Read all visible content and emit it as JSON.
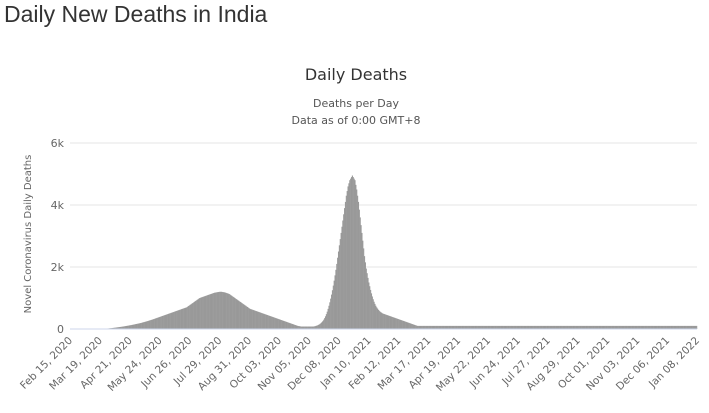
{
  "page_title": "Daily New Deaths in India",
  "chart_data": {
    "type": "bar",
    "title": "Daily Deaths",
    "subtitle_lines": [
      "Deaths per Day",
      "Data as of 0:00 GMT+8"
    ],
    "ylabel": "Novel Coronavirus Daily Deaths",
    "xlabel": "",
    "ylim": [
      0,
      6000
    ],
    "y_ticks": [
      0,
      2000,
      4000,
      6000
    ],
    "y_tick_labels": [
      "0",
      "2k",
      "4k",
      "6k"
    ],
    "x_tick_labels": [
      "Feb 15, 2020",
      "Mar 19, 2020",
      "Apr 21, 2020",
      "May 24, 2020",
      "Jun 26, 2020",
      "Jul 29, 2020",
      "Aug 31, 2020",
      "Oct 03, 2020",
      "Nov 05, 2020",
      "Dec 08, 2020",
      "Jan 10, 2021",
      "Feb 12, 2021",
      "Mar 17, 2021",
      "Apr 19, 2021",
      "May 22, 2021",
      "Jun 24, 2021",
      "Jul 27, 2021",
      "Aug 29, 2021",
      "Oct 01, 2021",
      "Nov 03, 2021",
      "Dec 06, 2021",
      "Jan 08, 2022"
    ],
    "grid": true,
    "legend": "none",
    "bar_color": "#999999",
    "series": [
      {
        "start_date": "Feb 15, 2020",
        "interval": "1 day",
        "values": [
          0,
          0,
          0,
          0,
          0,
          0,
          0,
          0,
          0,
          0,
          0,
          0,
          0,
          0,
          0,
          0,
          0,
          0,
          0,
          0,
          0,
          1,
          0,
          1,
          1,
          1,
          0,
          2,
          1,
          2,
          1,
          2,
          3,
          4,
          4,
          5,
          6,
          6,
          7,
          9,
          11,
          13,
          15,
          17,
          19,
          22,
          25,
          28,
          31,
          35,
          38,
          42,
          45,
          49,
          53,
          57,
          61,
          65,
          69,
          73,
          77,
          81,
          86,
          91,
          96,
          101,
          106,
          111,
          116,
          121,
          126,
          132,
          138,
          144,
          150,
          156,
          162,
          168,
          174,
          180,
          186,
          193,
          200,
          208,
          216,
          224,
          232,
          240,
          248,
          256,
          265,
          274,
          283,
          292,
          301,
          310,
          320,
          330,
          340,
          350,
          360,
          370,
          380,
          390,
          400,
          410,
          420,
          430,
          440,
          450,
          460,
          470,
          480,
          490,
          500,
          510,
          520,
          530,
          540,
          550,
          560,
          570,
          580,
          590,
          600,
          610,
          620,
          630,
          640,
          650,
          660,
          670,
          680,
          690,
          700,
          720,
          740,
          760,
          780,
          800,
          820,
          840,
          860,
          880,
          900,
          920,
          940,
          960,
          980,
          1000,
          1010,
          1020,
          1030,
          1040,
          1050,
          1060,
          1070,
          1080,
          1090,
          1100,
          1110,
          1120,
          1130,
          1140,
          1150,
          1160,
          1170,
          1175,
          1180,
          1185,
          1190,
          1195,
          1200,
          1200,
          1200,
          1195,
          1190,
          1185,
          1180,
          1170,
          1160,
          1150,
          1140,
          1130,
          1110,
          1090,
          1070,
          1050,
          1030,
          1010,
          990,
          970,
          950,
          930,
          910,
          890,
          870,
          850,
          830,
          810,
          790,
          770,
          750,
          730,
          710,
          690,
          670,
          650,
          640,
          630,
          620,
          610,
          600,
          590,
          580,
          570,
          560,
          550,
          540,
          530,
          520,
          510,
          500,
          490,
          480,
          470,
          460,
          450,
          440,
          430,
          420,
          410,
          400,
          390,
          380,
          370,
          360,
          350,
          340,
          330,
          320,
          310,
          300,
          290,
          280,
          270,
          260,
          250,
          240,
          230,
          220,
          210,
          200,
          190,
          180,
          170,
          160,
          150,
          140,
          130,
          120,
          110,
          100,
          95,
          90,
          85,
          80,
          80,
          80,
          80,
          80,
          80,
          80,
          80,
          80,
          80,
          80,
          80,
          80,
          80,
          80,
          85,
          90,
          100,
          110,
          120,
          135,
          150,
          170,
          195,
          225,
          260,
          300,
          350,
          410,
          480,
          560,
          650,
          750,
          860,
          980,
          1110,
          1250,
          1400,
          1560,
          1730,
          1910,
          2100,
          2300,
          2500,
          2700,
          2900,
          3100,
          3300,
          3500,
          3700,
          3900,
          4100,
          4300,
          4450,
          4600,
          4700,
          4800,
          4850,
          4900,
          4950,
          4900,
          4850,
          4800,
          4650,
          4500,
          4300,
          4100,
          3850,
          3600,
          3350,
          3100,
          2850,
          2600,
          2350,
          2150,
          1950,
          1800,
          1650,
          1500,
          1380,
          1260,
          1150,
          1050,
          960,
          880,
          810,
          750,
          700,
          660,
          620,
          590,
          560,
          540,
          520,
          500,
          490,
          480,
          470,
          460,
          450,
          440,
          430,
          420,
          410,
          400,
          390,
          380,
          370,
          360,
          350,
          340,
          330,
          320,
          310,
          300,
          290,
          280,
          270,
          260,
          250,
          240,
          230,
          220,
          210,
          200,
          190,
          180,
          170,
          160,
          150,
          140,
          130,
          120,
          110,
          100,
          100,
          100,
          100,
          100,
          100,
          100,
          100,
          100,
          100,
          100,
          100,
          100,
          100,
          100,
          100,
          100,
          100,
          100,
          100,
          100,
          100,
          100,
          100,
          100,
          100,
          100,
          100,
          100,
          100,
          100,
          100,
          100,
          100,
          100,
          100,
          100,
          100,
          100,
          100,
          100,
          100,
          100,
          100,
          100,
          100,
          100,
          100,
          100,
          100,
          100,
          100,
          100,
          100,
          100,
          100,
          100,
          100,
          100,
          100,
          100,
          100,
          100,
          100,
          100,
          100,
          100,
          100,
          100,
          100,
          100,
          100,
          100,
          100,
          100,
          100,
          100,
          100,
          100,
          100,
          100,
          100,
          100,
          100,
          100,
          100,
          100,
          100,
          100,
          100,
          100,
          100,
          100,
          100,
          100,
          100,
          100,
          100,
          100,
          100,
          100,
          100,
          100,
          100,
          100,
          100,
          100,
          100,
          100,
          100,
          100,
          100,
          100,
          100,
          100,
          100,
          100,
          100,
          100,
          100,
          100,
          100,
          100,
          100,
          100,
          100,
          100,
          100,
          100,
          100,
          100,
          100,
          100,
          100,
          100,
          100,
          100,
          100,
          100,
          100,
          100,
          100,
          100,
          100,
          100,
          100,
          100,
          100,
          100,
          100,
          100,
          100,
          100,
          100,
          100,
          100,
          100,
          100,
          100,
          100,
          100,
          100,
          100,
          100,
          100,
          100,
          100,
          100,
          100,
          100,
          100,
          100,
          100,
          100,
          100,
          100,
          100,
          100,
          100,
          100,
          100,
          100,
          100,
          100,
          100,
          100,
          100,
          100,
          100,
          100,
          100,
          100,
          100,
          100,
          100,
          100,
          100,
          100,
          100,
          100,
          100,
          100,
          100,
          100,
          100,
          100,
          100,
          100,
          100,
          100,
          100,
          100,
          100,
          100,
          100,
          100,
          100,
          100,
          100,
          100,
          100,
          100,
          100,
          100,
          100,
          100,
          100,
          100,
          100,
          100,
          100,
          100,
          100,
          100,
          100,
          100,
          100,
          100,
          100,
          100,
          100,
          100,
          100,
          100,
          100,
          100,
          100,
          100,
          100,
          100,
          100,
          100,
          100,
          100,
          100,
          100,
          100,
          100,
          100,
          100,
          100,
          100,
          100,
          100,
          100,
          100,
          100,
          100,
          100,
          100,
          100,
          100,
          100,
          100,
          100,
          100,
          100,
          100,
          100,
          100,
          100,
          100,
          100,
          100,
          100,
          100,
          100,
          100,
          100,
          100,
          100,
          100,
          100,
          100,
          100,
          100,
          100,
          100,
          100,
          100,
          100,
          100,
          100,
          100,
          100,
          100,
          100,
          100,
          100,
          100,
          100,
          100,
          100,
          100,
          100,
          100,
          100,
          100,
          100,
          100,
          100,
          100,
          100
        ]
      }
    ]
  }
}
